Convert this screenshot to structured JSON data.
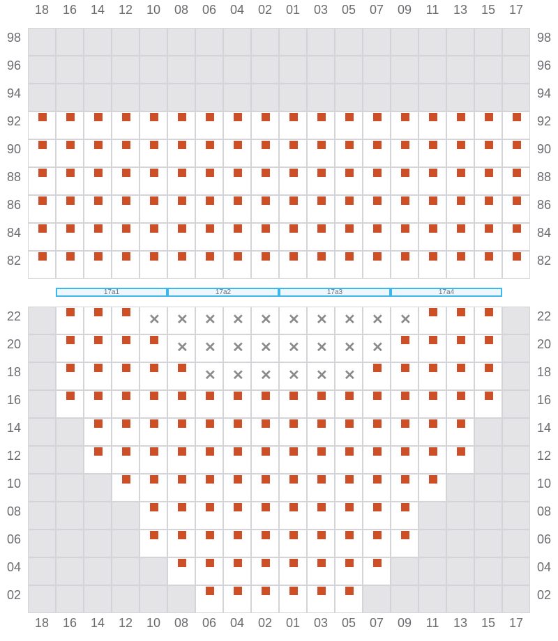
{
  "columns": [
    "18",
    "16",
    "14",
    "12",
    "10",
    "08",
    "06",
    "04",
    "02",
    "01",
    "03",
    "05",
    "07",
    "09",
    "11",
    "13",
    "15",
    "17"
  ],
  "colors": {
    "marker": "#cc4f28",
    "unavailable": "#e4e4e7",
    "band": "#3db8ec",
    "cross": "#8a8a8a"
  },
  "legend": {
    "s": "filled-slot",
    "x": "blocked-slot",
    "g": "unavailable",
    "e": "empty"
  },
  "top_section": {
    "rows": [
      {
        "label": "98",
        "cells": "gggggggggggggggggg"
      },
      {
        "label": "96",
        "cells": "gggggggggggggggggg"
      },
      {
        "label": "94",
        "cells": "gggggggggggggggggg"
      },
      {
        "label": "92",
        "cells": "ssssssssssssssssss"
      },
      {
        "label": "90",
        "cells": "ssssssssssssssssss"
      },
      {
        "label": "88",
        "cells": "ssssssssssssssssss"
      },
      {
        "label": "86",
        "cells": "ssssssssssssssssss"
      },
      {
        "label": "84",
        "cells": "ssssssssssssssssss"
      },
      {
        "label": "82",
        "cells": "ssssssssssssssssss"
      }
    ]
  },
  "bands": [
    "17a1",
    "17a2",
    "17a3",
    "17a4"
  ],
  "bottom_section": {
    "rows": [
      {
        "label": "22",
        "cells": "gsssxxxxxxxxxxsssg"
      },
      {
        "label": "20",
        "cells": "gssssxxxxxxxxssssg"
      },
      {
        "label": "18",
        "cells": "gsssssxxxxxxsssssg"
      },
      {
        "label": "16",
        "cells": "gssssssssssssssssg"
      },
      {
        "label": "14",
        "cells": "ggssssssssssssssgg"
      },
      {
        "label": "12",
        "cells": "ggssssssssssssssgg"
      },
      {
        "label": "10",
        "cells": "gggssssssssssssggg"
      },
      {
        "label": "08",
        "cells": "ggggssssssssssgggg"
      },
      {
        "label": "06",
        "cells": "ggggssssssssssgggg"
      },
      {
        "label": "04",
        "cells": "gggggssssssssggggg"
      },
      {
        "label": "02",
        "cells": "ggggggssssssgggggg"
      }
    ]
  }
}
